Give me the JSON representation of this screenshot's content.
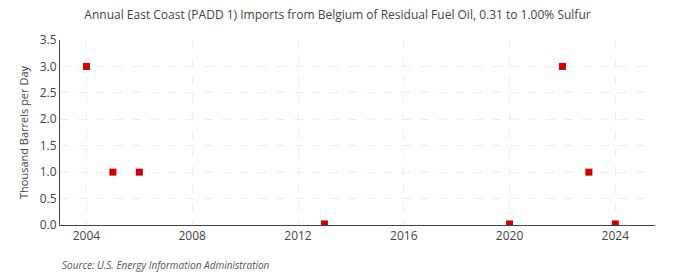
{
  "chart_data": {
    "type": "scatter",
    "title": "Annual East Coast (PADD 1) Imports from Belgium of Residual Fuel Oil, 0.31 to 1.00% Sulfur",
    "ylabel": "Thousand Barrels per Day",
    "source": "Source: U.S. Energy Information Administration",
    "x": [
      2004,
      2005,
      2006,
      2013,
      2020,
      2022,
      2023,
      2024
    ],
    "values": [
      3.0,
      1.0,
      1.0,
      0.02,
      0.02,
      3.0,
      1.0,
      0.02
    ],
    "color": "#cc0000",
    "marker": "square",
    "xlim": [
      2003.0,
      2025.5
    ],
    "xticks": [
      2004,
      2008,
      2012,
      2016,
      2020,
      2024
    ],
    "ylim": [
      0.0,
      3.5
    ],
    "yticks": [
      {
        "value": 0.0,
        "label": "0.0"
      },
      0.5,
      {
        "value": 1.0,
        "label": "1.0"
      },
      1.5,
      {
        "value": 2.0,
        "label": "2.0"
      },
      2.5,
      {
        "value": 3.0,
        "label": "3.0"
      },
      3.5
    ],
    "grid": true
  }
}
